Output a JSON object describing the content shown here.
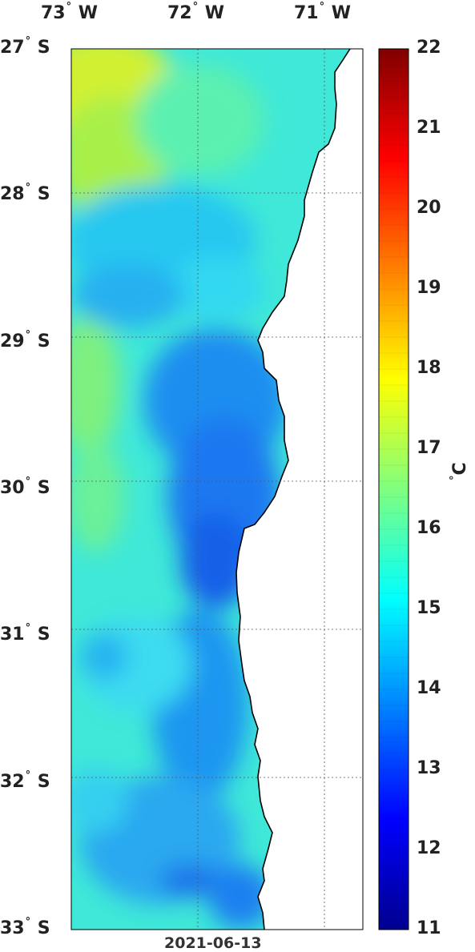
{
  "map": {
    "date": "2021-06-13",
    "lon_labels": [
      {
        "deg": "73",
        "hem": "W",
        "value": -73
      },
      {
        "deg": "72",
        "hem": "W",
        "value": -72
      },
      {
        "deg": "71",
        "hem": "W",
        "value": -71
      }
    ],
    "lat_labels": [
      {
        "deg": "27",
        "hem": "S",
        "value": -27
      },
      {
        "deg": "28",
        "hem": "S",
        "value": -28
      },
      {
        "deg": "29",
        "hem": "S",
        "value": -29
      },
      {
        "deg": "30",
        "hem": "S",
        "value": -30
      },
      {
        "deg": "31",
        "hem": "S",
        "value": -31
      },
      {
        "deg": "32",
        "hem": "S",
        "value": -32
      },
      {
        "deg": "33",
        "hem": "S",
        "value": -33
      }
    ],
    "colorbar": {
      "min": 11,
      "max": 22,
      "ticks": [
        "22",
        "21",
        "20",
        "19",
        "18",
        "17",
        "16",
        "15",
        "14",
        "13",
        "12",
        "11"
      ],
      "unit_deg": "°",
      "unit": "C"
    },
    "colors": {
      "land": "#ffffff",
      "coast": "#000000",
      "warm_offshore": "#d2f02e",
      "mid": "#33f0d0",
      "cold_upwelling": "#1a6cf0"
    }
  }
}
